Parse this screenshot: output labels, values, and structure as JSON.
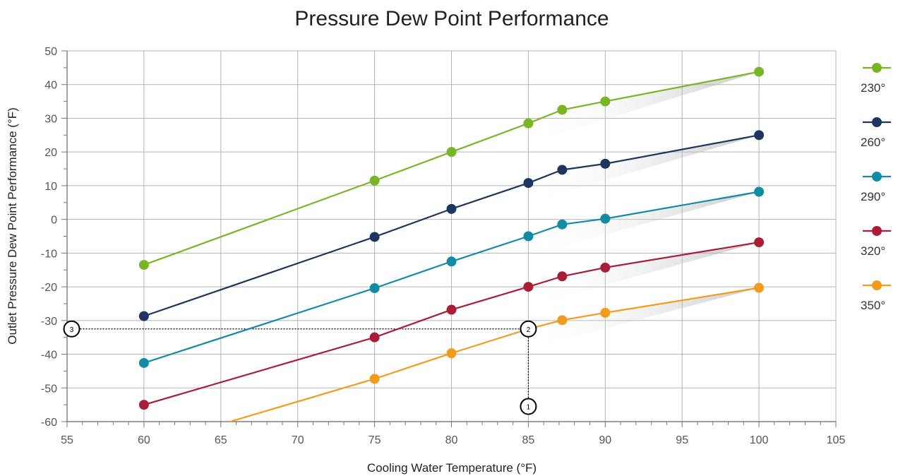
{
  "chart_data": {
    "type": "line",
    "title": "Pressure Dew Point Performance",
    "xlabel": "Cooling Water Temperature (°F)",
    "ylabel": "Outlet Pressure Dew Point Performance (°F)",
    "xlim": [
      55,
      105
    ],
    "ylim": [
      -60,
      50
    ],
    "xticks": [
      55,
      60,
      65,
      70,
      75,
      80,
      85,
      90,
      95,
      100,
      105
    ],
    "yticks": [
      50,
      40,
      30,
      20,
      10,
      0,
      -10,
      -20,
      -30,
      -40,
      -50,
      -60
    ],
    "grid": true,
    "legend_position": "right",
    "series": [
      {
        "name": "230°",
        "color": "#7ab526",
        "x": [
          60,
          75,
          80,
          85,
          87.2,
          90,
          100
        ],
        "y": [
          -13.5,
          11.5,
          20,
          28.5,
          32.5,
          35,
          43.8
        ]
      },
      {
        "name": "260°",
        "color": "#1e3560",
        "x": [
          60,
          75,
          80,
          85,
          87.2,
          90,
          100
        ],
        "y": [
          -28.7,
          -5.2,
          3.1,
          10.8,
          14.7,
          16.5,
          25
        ]
      },
      {
        "name": "290°",
        "color": "#138aa6",
        "x": [
          60,
          75,
          80,
          85,
          87.2,
          90,
          100
        ],
        "y": [
          -42.6,
          -20.4,
          -12.5,
          -5,
          -1.5,
          0.2,
          8.2
        ]
      },
      {
        "name": "320°",
        "color": "#a91e36",
        "x": [
          60,
          75,
          80,
          85,
          87.2,
          90,
          100
        ],
        "y": [
          -55,
          -35,
          -26.8,
          -20,
          -16.9,
          -14.3,
          -6.8
        ]
      },
      {
        "name": "350°",
        "color": "#f39b1c",
        "x": [
          65.6,
          75,
          80,
          85,
          87.2,
          90,
          100
        ],
        "y": [
          -60,
          -47.3,
          -39.7,
          -32.5,
          -29.9,
          -27.7,
          -20.3
        ]
      }
    ],
    "callouts": [
      {
        "label": "1",
        "x": 85,
        "y": -55.5
      },
      {
        "label": "2",
        "x": 85,
        "y": -32.5
      },
      {
        "label": "3",
        "x": 55.3,
        "y": -32.5
      }
    ]
  }
}
